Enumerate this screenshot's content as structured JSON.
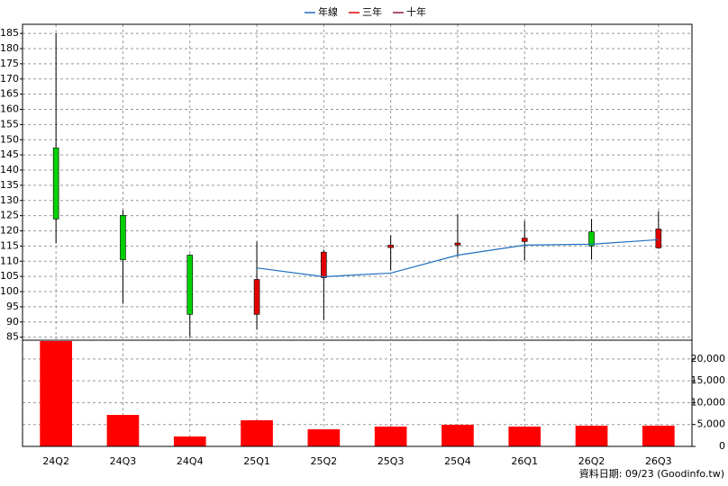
{
  "chart_data": [
    {
      "type": "candlestick",
      "open": [
        147.3,
        125.1,
        112,
        92.5,
        104.6,
        114.5,
        115.3,
        116.5,
        119.7,
        114.4
      ],
      "high": [
        185,
        126.8,
        112.3,
        116.5,
        113.8,
        118.5,
        125.4,
        123.3,
        123.9,
        126.5
      ],
      "low": [
        115.9,
        96,
        85,
        87.4,
        90.6,
        106.9,
        111.4,
        110.2,
        110.5,
        114.1
      ],
      "close": [
        123.9,
        110.5,
        92.5,
        104,
        113,
        115.3,
        116,
        117.6,
        115,
        120.6
      ],
      "up_color": "#e00000",
      "down_color": "#00d000",
      "series": [
        {
          "name": "年線",
          "color": "#1f6fbf",
          "values": [
            null,
            null,
            null,
            107.8,
            104.9,
            106.1,
            112,
            115.3,
            115.6,
            117.1
          ]
        },
        {
          "name": "三年",
          "color": "#e00000",
          "values": [
            null,
            null,
            null,
            null,
            null,
            null,
            null,
            null,
            null,
            null
          ]
        },
        {
          "name": "十年",
          "color": "#8b1a3a",
          "values": [
            null,
            null,
            null,
            null,
            null,
            null,
            null,
            null,
            null,
            null
          ]
        }
      ],
      "ylim": [
        84,
        188
      ],
      "yticks": [
        85,
        90,
        95,
        100,
        105,
        110,
        115,
        120,
        125,
        130,
        135,
        140,
        145,
        150,
        155,
        160,
        165,
        170,
        175,
        180,
        185
      ],
      "grid": true,
      "legend": "top"
    },
    {
      "type": "bar",
      "categories": [
        "24Q2",
        "24Q3",
        "24Q4",
        "25Q1",
        "25Q2",
        "25Q3",
        "25Q4",
        "26Q1",
        "26Q2",
        "26Q3"
      ],
      "values": [
        24100,
        7200,
        2270,
        5980,
        3920,
        4540,
        4950,
        4540,
        4740,
        4740
      ],
      "color": "#ff0000",
      "ylim": [
        0,
        24300
      ],
      "yticks": [
        0,
        {
          "value": 5000,
          "label": "5,000"
        },
        {
          "value": 10000,
          "label": "10,000"
        },
        {
          "value": 15000,
          "label": "15,000"
        },
        {
          "value": 20000,
          "label": "20,000"
        }
      ],
      "grid": true
    }
  ],
  "footer": "資料日期: 09/23  (Goodinfo.tw)"
}
